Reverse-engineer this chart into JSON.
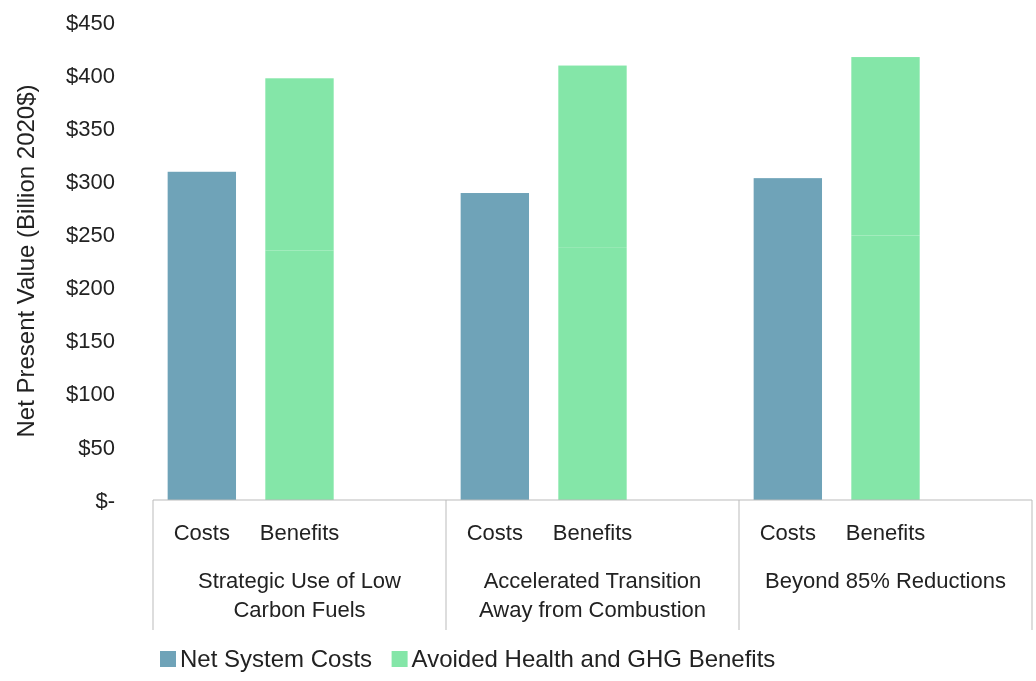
{
  "chart_data": {
    "type": "bar",
    "stacked": true,
    "ylabel": "Net Present Value (Billion 2020$)",
    "categories": [
      "Costs",
      "Benefits",
      null,
      "Costs",
      "Benefits",
      null,
      "Costs",
      "Benefits",
      null
    ],
    "annotations": [
      "Strategic Use of Low Carbon Fuels",
      "Accelerated Transition Away from Combustion",
      "Beyond 85% Reductions"
    ],
    "series": [
      {
        "name": "Net System Costs",
        "color": "#6fa3b8",
        "values": [
          309,
          null,
          null,
          289,
          null,
          null,
          303,
          null,
          null
        ]
      },
      {
        "name": "Avoided Health and GHG Benefits",
        "color": "#84e6a8",
        "values": [
          null,
          235,
          null,
          null,
          238,
          null,
          null,
          249,
          null
        ]
      },
      {
        "color": "#84e6a8",
        "values": [
          null,
          162,
          null,
          null,
          171,
          null,
          null,
          168,
          null
        ]
      }
    ],
    "ylim": [
      0,
      450
    ],
    "yticks": [
      {
        "value": 0,
        "label": "$-"
      },
      {
        "value": 50,
        "label": "$50"
      },
      {
        "value": 100,
        "label": "$100"
      },
      {
        "value": 150,
        "label": "$150"
      },
      {
        "value": 200,
        "label": "$200"
      },
      {
        "value": 250,
        "label": "$250"
      },
      {
        "value": 300,
        "label": "$300"
      },
      {
        "value": 350,
        "label": "$350"
      },
      {
        "value": 400,
        "label": "$400"
      },
      {
        "value": 450,
        "label": "$450"
      }
    ],
    "grid": false,
    "legend": "bottom"
  }
}
